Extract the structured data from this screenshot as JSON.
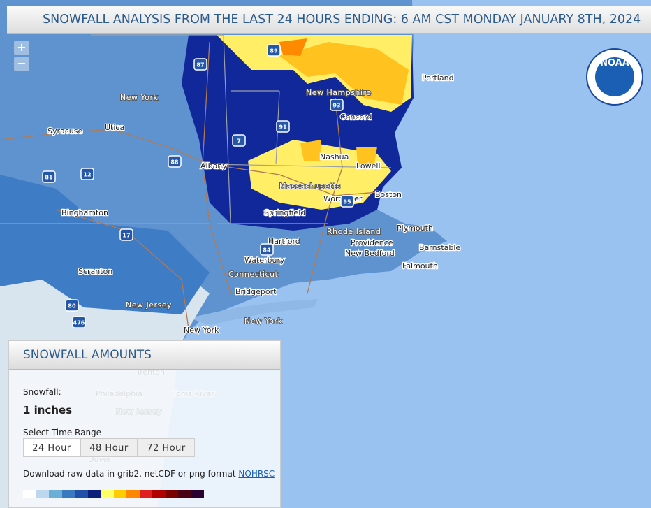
{
  "header": {
    "title": "SNOWFALL ANALYSIS FROM THE LAST 24 HOURS ENDING: 6 AM CST MONDAY JANUARY 8TH, 2024"
  },
  "zoom": {
    "in": "+",
    "out": "−"
  },
  "logo": {
    "text": "NOAA"
  },
  "map": {
    "labels": [
      "New York",
      "Syracuse",
      "Utica",
      "Albany",
      "Binghamton",
      "Scranton",
      "New Jersey",
      "New York",
      "New Hampshire",
      "Concord",
      "Portland",
      "Nashua",
      "Lowell",
      "Massachusetts",
      "Boston",
      "Worcester",
      "Springfield",
      "Hartford",
      "Waterbury",
      "Connecticut",
      "Bridgeport",
      "Rhode Island",
      "Providence",
      "New Bedford",
      "Plymouth",
      "Barnstable",
      "Falmouth",
      "New York",
      "Trenton",
      "Philadelphia",
      "Toms River",
      "New Jersey",
      "Dover"
    ],
    "shields": [
      "87",
      "89",
      "93",
      "91",
      "7",
      "88",
      "81",
      "12",
      "17",
      "84",
      "95",
      "80",
      "476"
    ]
  },
  "panel": {
    "title": "SNOWFALL AMOUNTS",
    "field_label": "Snowfall:",
    "field_value": "1 inches",
    "range_label": "Select Time Range",
    "buttons": [
      "24 Hour",
      "48 Hour",
      "72 Hour"
    ],
    "download_text": "Download raw data in grib2, netCDF or png format",
    "download_link": "NOHRSC",
    "legend_colors": [
      "#ffffff",
      "#bdd7ee",
      "#6baed6",
      "#3a78c2",
      "#1f4fa8",
      "#0b1f7a",
      "#ffff66",
      "#ffcc00",
      "#ff8800",
      "#e02020",
      "#b00000",
      "#7a0000",
      "#4a0015",
      "#2a0030"
    ]
  }
}
